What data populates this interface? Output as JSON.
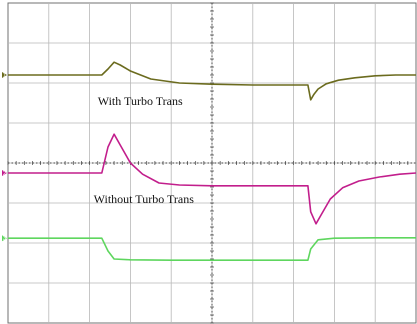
{
  "chart_data": {
    "type": "line",
    "title": "",
    "xlabel": "",
    "ylabel": "",
    "grid": true,
    "grid_divisions": {
      "x": 10,
      "y": 8
    },
    "xlim": [
      0,
      10
    ],
    "ylim": [
      0,
      8
    ],
    "annotations": [
      {
        "text": "With Turbo Trans",
        "x": 2.2,
        "y": 5.45
      },
      {
        "text": "Without Turbo Trans",
        "x": 2.1,
        "y": 3.0
      }
    ],
    "series": [
      {
        "color": "#6b6b1e",
        "marker": "1",
        "x": [
          0,
          2.3,
          2.45,
          2.6,
          2.75,
          3.0,
          3.5,
          4.2,
          5.0,
          6.0,
          7.0,
          7.35,
          7.42,
          7.5,
          7.6,
          7.8,
          8.1,
          8.5,
          9.0,
          9.5,
          10
        ],
        "y": [
          6.2,
          6.2,
          6.35,
          6.52,
          6.45,
          6.3,
          6.1,
          6.0,
          5.97,
          5.95,
          5.95,
          5.95,
          5.58,
          5.72,
          5.85,
          5.98,
          6.07,
          6.13,
          6.18,
          6.2,
          6.2
        ]
      },
      {
        "color": "#c21e8c",
        "marker": "2",
        "x": [
          0,
          2.3,
          2.45,
          2.6,
          2.75,
          3.0,
          3.3,
          3.7,
          4.2,
          5.0,
          6.0,
          7.0,
          7.35,
          7.42,
          7.55,
          7.7,
          7.9,
          8.2,
          8.6,
          9.1,
          9.6,
          10
        ],
        "y": [
          3.75,
          3.75,
          4.4,
          4.72,
          4.45,
          4.0,
          3.72,
          3.5,
          3.45,
          3.43,
          3.43,
          3.43,
          3.43,
          2.78,
          2.48,
          2.75,
          3.1,
          3.38,
          3.55,
          3.65,
          3.72,
          3.75
        ],
        "annotation_index": 1
      },
      {
        "color": "#5ed65e",
        "marker": "3",
        "x": [
          0,
          2.3,
          2.45,
          2.6,
          3.0,
          4.0,
          5.0,
          6.0,
          7.0,
          7.35,
          7.42,
          7.6,
          8.0,
          9.0,
          10
        ],
        "y": [
          2.12,
          2.12,
          1.8,
          1.6,
          1.58,
          1.57,
          1.57,
          1.57,
          1.57,
          1.57,
          1.85,
          2.08,
          2.12,
          2.13,
          2.13
        ]
      }
    ]
  }
}
